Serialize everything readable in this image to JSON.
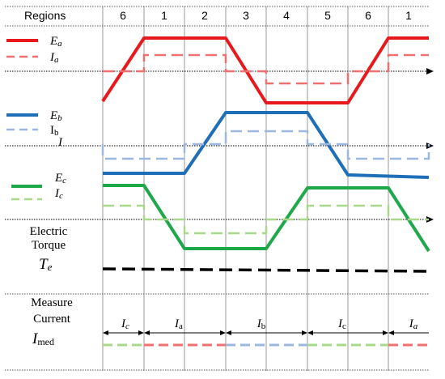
{
  "header": {
    "label": "Regions",
    "regions": [
      "6",
      "1",
      "2",
      "3",
      "4",
      "5",
      "6",
      "1"
    ]
  },
  "legend": {
    "ea": {
      "sym": "E",
      "sub": "a"
    },
    "ia": {
      "sym": "I",
      "sub": "a"
    },
    "eb": {
      "sym": "E",
      "sub": "b"
    },
    "ib": {
      "sym": "I",
      "sub": "b"
    },
    "i": {
      "sym": "I"
    },
    "ec": {
      "sym": "E",
      "sub": "c"
    },
    "ic": {
      "sym": "I",
      "sub": "c"
    }
  },
  "torque": {
    "line1": "Electric",
    "line2": "Torque",
    "sym": "T",
    "sub": "e"
  },
  "measure": {
    "line1": "Measure",
    "line2": "Current",
    "sym": "I",
    "sub": "med",
    "segments": [
      {
        "sym": "I",
        "sub": "c"
      },
      {
        "sym": "I",
        "sub": "a"
      },
      {
        "sym": "I",
        "sub": "b"
      },
      {
        "sym": "I",
        "sub": "c"
      },
      {
        "sym": "I",
        "sub": "a"
      }
    ]
  },
  "colors": {
    "phase_a": "#e8191c",
    "phase_a_current": "#f07070",
    "phase_b": "#1f6fb8",
    "phase_b_current": "#9db8e0",
    "phase_c": "#1fa84a",
    "phase_c_current": "#a8d88a",
    "torque": "#000000",
    "grid": "#9a9a9a"
  }
}
